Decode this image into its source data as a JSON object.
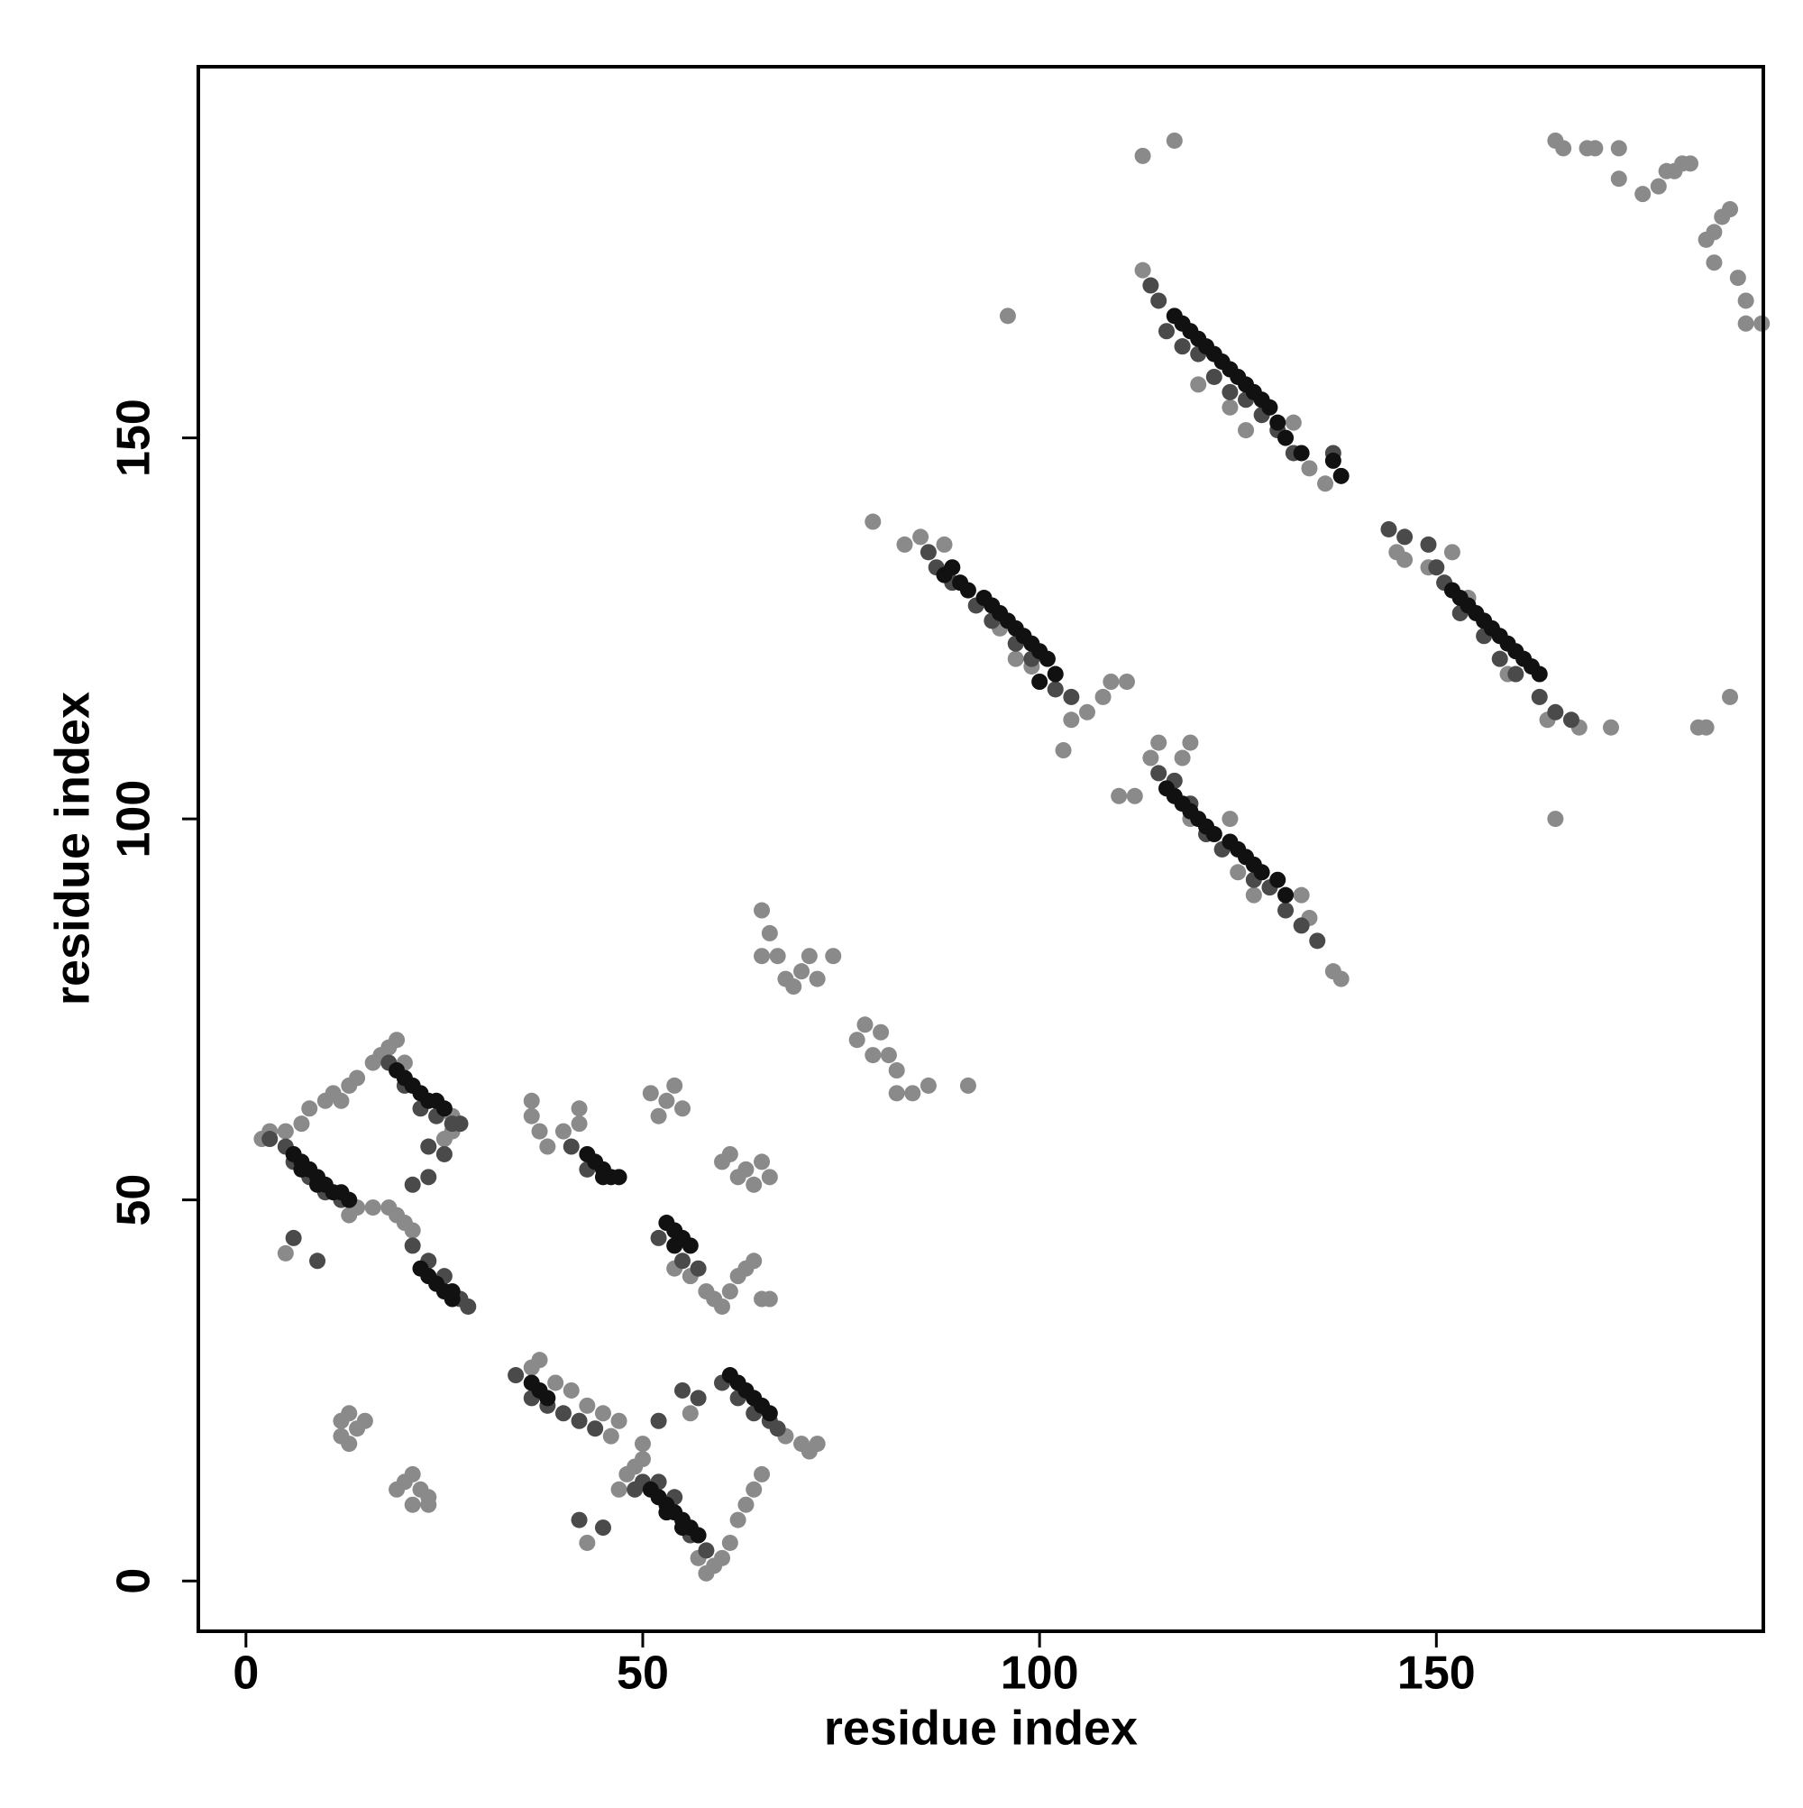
{
  "chart_data": {
    "type": "scatter",
    "xlabel": "residue index",
    "ylabel": "residue index",
    "xlim": [
      -6,
      191.2
    ],
    "ylim": [
      -6.6,
      198.7
    ],
    "xticks": [
      0,
      50,
      100,
      150
    ],
    "yticks": [
      0,
      50,
      100,
      150
    ],
    "series": [
      {
        "color": "#8a8a8a",
        "x": [
          2,
          3,
          5,
          7,
          8,
          10,
          11,
          12,
          13,
          14,
          16,
          17,
          18,
          19,
          20,
          25,
          26,
          26,
          13,
          14,
          16,
          18,
          19,
          20,
          21,
          5,
          12,
          13,
          14,
          12,
          13,
          15,
          19,
          20,
          21,
          22,
          23,
          21,
          23,
          36,
          37,
          39,
          41,
          43,
          45,
          47,
          46,
          43,
          47,
          48,
          49,
          50,
          50,
          56,
          57,
          58,
          59,
          60,
          61,
          62,
          63,
          64,
          65,
          68,
          70,
          71,
          72,
          36,
          36,
          37,
          38,
          40,
          42,
          42,
          51,
          52,
          53,
          54,
          55,
          54,
          56,
          58,
          59,
          60,
          61,
          62,
          63,
          64,
          65,
          66,
          60,
          61,
          62,
          63,
          64,
          65,
          66,
          65,
          66,
          65,
          67,
          68,
          69,
          70,
          71,
          72,
          74,
          77,
          78,
          79,
          80,
          81,
          82,
          82,
          84,
          86,
          91,
          79,
          83,
          85,
          88,
          95,
          97,
          99,
          104,
          106,
          108,
          109,
          111,
          103,
          110,
          112,
          114,
          115,
          119,
          118,
          119,
          124,
          125,
          127,
          133,
          134,
          137,
          138,
          96,
          113,
          113,
          117,
          118,
          120,
          124,
          126,
          132,
          134,
          136,
          145,
          146,
          149,
          152,
          154,
          156,
          159,
          164,
          168,
          172,
          165,
          183,
          184,
          187,
          165,
          166,
          169,
          170,
          173,
          173,
          176,
          178,
          179,
          180,
          181,
          182,
          184,
          185,
          186,
          187,
          185,
          188,
          189,
          189,
          191
        ],
        "values": [
          58,
          59,
          59,
          60,
          62,
          63,
          64,
          63,
          65,
          66,
          68,
          69,
          70,
          71,
          68,
          58,
          59,
          61,
          48,
          49,
          49,
          49,
          48,
          47,
          46,
          43,
          21,
          22,
          20,
          19,
          18,
          21,
          12,
          13,
          14,
          12,
          11,
          10,
          10,
          28,
          29,
          26,
          25,
          23,
          22,
          21,
          19,
          5,
          12,
          14,
          15,
          16,
          18,
          22,
          3,
          1,
          2,
          3,
          5,
          8,
          10,
          12,
          14,
          19,
          18,
          17,
          18,
          63,
          61,
          59,
          57,
          59,
          62,
          60,
          64,
          61,
          63,
          65,
          62,
          41,
          40,
          38,
          37,
          36,
          38,
          40,
          41,
          42,
          37,
          37,
          55,
          56,
          53,
          54,
          52,
          55,
          53,
          88,
          85,
          82,
          82,
          79,
          78,
          80,
          82,
          79,
          82,
          71,
          73,
          69,
          72,
          69,
          67,
          64,
          64,
          65,
          65,
          139,
          136,
          137,
          136,
          125,
          121,
          120,
          113,
          114,
          116,
          118,
          118,
          109,
          103,
          103,
          108,
          110,
          110,
          108,
          100,
          100,
          93,
          90,
          90,
          87,
          80,
          79,
          166,
          172,
          187,
          189,
          162,
          157,
          154,
          151,
          152,
          146,
          144,
          135,
          134,
          133,
          135,
          129,
          126,
          119,
          113,
          112,
          112,
          100,
          112,
          112,
          116,
          189,
          188,
          188,
          188,
          188,
          184,
          182,
          183,
          185,
          185,
          186,
          186,
          176,
          177,
          179,
          180,
          173,
          171,
          168,
          165,
          165
        ]
      },
      {
        "color": "#4a4a4a",
        "x": [
          3,
          5,
          6,
          8,
          10,
          12,
          6,
          9,
          18,
          20,
          22,
          24,
          26,
          27,
          21,
          23,
          23,
          25,
          21,
          23,
          25,
          27,
          28,
          34,
          36,
          38,
          40,
          42,
          44,
          42,
          45,
          49,
          50,
          52,
          54,
          56,
          58,
          52,
          55,
          57,
          60,
          62,
          64,
          66,
          67,
          41,
          43,
          52,
          55,
          57,
          86,
          87,
          89,
          92,
          94,
          97,
          99,
          102,
          104,
          114,
          115,
          116,
          118,
          120,
          122,
          124,
          126,
          128,
          130,
          132,
          137,
          144,
          146,
          149,
          150,
          151,
          153,
          156,
          158,
          160,
          163,
          165,
          167,
          115,
          117,
          119,
          121,
          123,
          127,
          129,
          131,
          133,
          135
        ],
        "values": [
          58,
          57,
          55,
          53,
          51,
          50,
          45,
          42,
          68,
          65,
          62,
          61,
          60,
          60,
          52,
          53,
          57,
          56,
          44,
          42,
          40,
          37,
          36,
          27,
          24,
          23,
          22,
          21,
          20,
          8,
          7,
          12,
          13,
          13,
          11,
          6,
          4,
          21,
          25,
          24,
          26,
          24,
          22,
          21,
          20,
          57,
          54,
          45,
          42,
          41,
          135,
          133,
          131,
          128,
          126,
          123,
          121,
          117,
          116,
          170,
          168,
          164,
          162,
          161,
          158,
          156,
          155,
          153,
          151,
          148,
          148,
          138,
          137,
          136,
          133,
          131,
          127,
          124,
          121,
          119,
          116,
          114,
          113,
          106,
          105,
          102,
          98,
          96,
          92,
          91,
          88,
          86,
          84
        ]
      },
      {
        "color": "#111111",
        "x": [
          6,
          7,
          8,
          9,
          10,
          11,
          12,
          13,
          7,
          9,
          19,
          20,
          21,
          22,
          23,
          24,
          25,
          22,
          23,
          24,
          25,
          26,
          26,
          36,
          37,
          38,
          51,
          52,
          53,
          54,
          55,
          56,
          57,
          53,
          55,
          61,
          62,
          63,
          64,
          65,
          66,
          43,
          44,
          45,
          46,
          47,
          45,
          53,
          54,
          55,
          56,
          54,
          88,
          89,
          90,
          91,
          93,
          94,
          95,
          96,
          97,
          98,
          99,
          100,
          101,
          102,
          100,
          117,
          118,
          119,
          120,
          121,
          122,
          123,
          124,
          125,
          126,
          127,
          128,
          129,
          130,
          131,
          133,
          137,
          138,
          116,
          117,
          118,
          119,
          120,
          121,
          122,
          124,
          125,
          126,
          127,
          128,
          130,
          131,
          152,
          153,
          154,
          155,
          156,
          157,
          158,
          159,
          160,
          161,
          162,
          163
        ],
        "values": [
          56,
          55,
          54,
          53,
          52,
          51,
          51,
          50,
          54,
          52,
          67,
          66,
          65,
          64,
          63,
          63,
          62,
          41,
          40,
          39,
          38,
          37,
          38,
          26,
          25,
          24,
          12,
          11,
          10,
          9,
          8,
          7,
          6,
          9,
          7,
          27,
          26,
          25,
          24,
          23,
          22,
          56,
          55,
          54,
          53,
          53,
          53,
          47,
          46,
          45,
          44,
          44,
          132,
          133,
          131,
          130,
          129,
          128,
          127,
          126,
          125,
          124,
          123,
          122,
          121,
          119,
          118,
          166,
          165,
          164,
          163,
          162,
          161,
          160,
          159,
          158,
          157,
          156,
          155,
          154,
          152,
          150,
          148,
          147,
          145,
          104,
          103,
          102,
          101,
          100,
          99,
          98,
          97,
          96,
          95,
          94,
          93,
          92,
          90,
          130,
          129,
          128,
          127,
          126,
          125,
          124,
          123,
          122,
          121,
          120,
          119
        ]
      }
    ]
  }
}
